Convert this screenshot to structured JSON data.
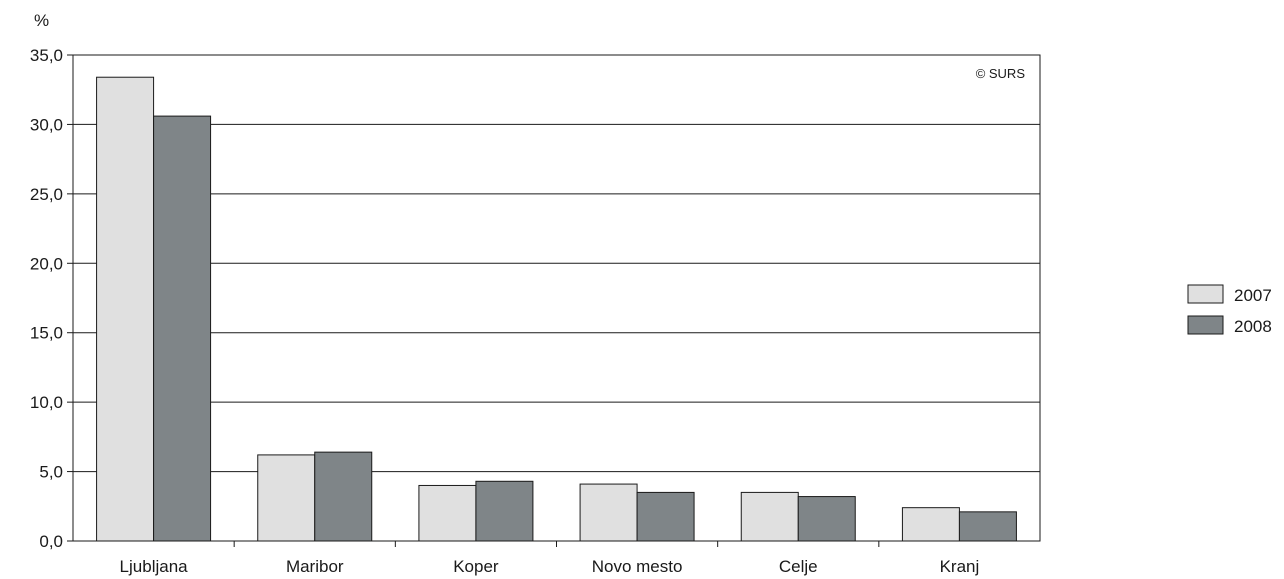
{
  "chart_data": {
    "type": "bar",
    "unit_label": "%",
    "copyright": "© SURS",
    "categories": [
      "Ljubljana",
      "Maribor",
      "Koper",
      "Novo mesto",
      "Celje",
      "Kranj"
    ],
    "series": [
      {
        "name": "2007",
        "color": "#e0e0e0",
        "values": [
          33.4,
          6.2,
          4.0,
          4.1,
          3.5,
          2.4
        ]
      },
      {
        "name": "2008",
        "color": "#7f8588",
        "values": [
          30.6,
          6.4,
          4.3,
          3.5,
          3.2,
          2.1
        ]
      }
    ],
    "yticks": [
      "0,0",
      "5,0",
      "10,0",
      "15,0",
      "20,0",
      "25,0",
      "30,0",
      "35,0"
    ],
    "ylim": [
      0,
      35
    ],
    "grid": true,
    "legend_position": "right"
  }
}
